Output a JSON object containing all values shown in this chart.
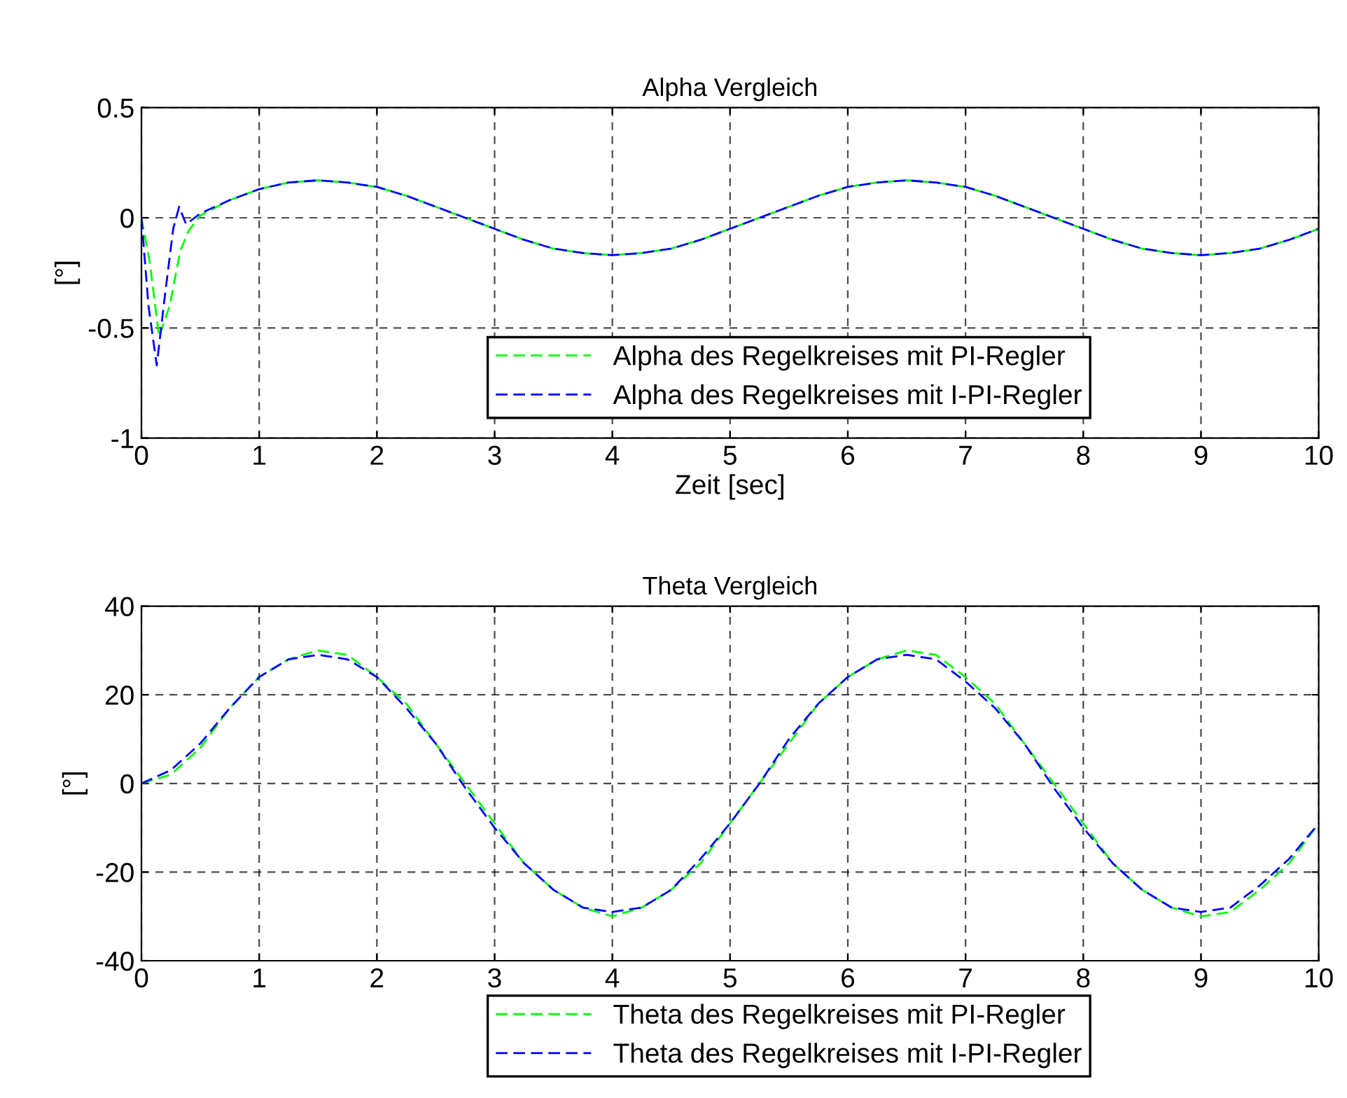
{
  "chart_data": [
    {
      "type": "line",
      "title": "Alpha Vergleich",
      "xlabel": "Zeit [sec]",
      "ylabel": "[°]",
      "xlim": [
        0,
        10
      ],
      "xticks": [
        0,
        1,
        2,
        3,
        4,
        5,
        6,
        7,
        8,
        9,
        10
      ],
      "ylim": [
        -1,
        0.5
      ],
      "yticks": [
        -1,
        -0.5,
        0,
        0.5
      ],
      "grid": true,
      "legend": "bottom",
      "line_style": "dashed",
      "series": [
        {
          "name": "Alpha des Regelkreises mit PI-Regler",
          "color": "#00ff00",
          "x": [
            0,
            0.07,
            0.15,
            0.24,
            0.33,
            0.4,
            0.5,
            0.75,
            1,
            1.25,
            1.5,
            1.75,
            2,
            2.25,
            2.5,
            2.75,
            3,
            3.25,
            3.5,
            3.75,
            4,
            4.25,
            4.5,
            4.75,
            5,
            5.25,
            5.5,
            5.75,
            6,
            6.25,
            6.5,
            6.75,
            7,
            7.25,
            7.5,
            7.75,
            8,
            8.25,
            8.5,
            8.75,
            9,
            9.25,
            9.5,
            9.75,
            10
          ],
          "values": [
            0,
            -0.2,
            -0.54,
            -0.4,
            -0.15,
            -0.06,
            0.01,
            0.08,
            0.13,
            0.16,
            0.17,
            0.16,
            0.14,
            0.1,
            0.05,
            0,
            -0.05,
            -0.1,
            -0.14,
            -0.16,
            -0.17,
            -0.16,
            -0.14,
            -0.1,
            -0.05,
            0,
            0.05,
            0.1,
            0.14,
            0.16,
            0.17,
            0.16,
            0.14,
            0.1,
            0.05,
            0,
            -0.05,
            -0.1,
            -0.14,
            -0.16,
            -0.17,
            -0.16,
            -0.14,
            -0.1,
            -0.05
          ]
        },
        {
          "name": "Alpha des Regelkreises mit I-PI-Regler",
          "color": "#0000ff",
          "x": [
            0,
            0.06,
            0.13,
            0.2,
            0.27,
            0.32,
            0.38,
            0.5,
            0.75,
            1,
            1.25,
            1.5,
            1.75,
            2,
            2.25,
            2.5,
            2.75,
            3,
            3.25,
            3.5,
            3.75,
            4,
            4.25,
            4.5,
            4.75,
            5,
            5.25,
            5.5,
            5.75,
            6,
            6.25,
            6.5,
            6.75,
            7,
            7.25,
            7.5,
            7.75,
            8,
            8.25,
            8.5,
            8.75,
            9,
            9.25,
            9.5,
            9.75,
            10
          ],
          "values": [
            0,
            -0.4,
            -0.67,
            -0.35,
            -0.05,
            0.05,
            -0.03,
            0.02,
            0.08,
            0.13,
            0.16,
            0.17,
            0.16,
            0.14,
            0.1,
            0.05,
            0,
            -0.05,
            -0.1,
            -0.14,
            -0.16,
            -0.17,
            -0.16,
            -0.14,
            -0.1,
            -0.05,
            0,
            0.05,
            0.1,
            0.14,
            0.16,
            0.17,
            0.16,
            0.14,
            0.1,
            0.05,
            0,
            -0.05,
            -0.1,
            -0.14,
            -0.16,
            -0.17,
            -0.16,
            -0.14,
            -0.1,
            -0.05
          ]
        }
      ]
    },
    {
      "type": "line",
      "title": "Theta Vergleich",
      "ylabel": "[°]",
      "xlim": [
        0,
        10
      ],
      "xticks": [
        0,
        1,
        2,
        3,
        4,
        5,
        6,
        7,
        8,
        9,
        10
      ],
      "ylim": [
        -40,
        40
      ],
      "yticks": [
        -40,
        -20,
        0,
        20,
        40
      ],
      "grid": true,
      "legend": "bottom",
      "line_style": "dashed",
      "series": [
        {
          "name": "Theta des Regelkreises mit PI-Regler",
          "color": "#00ff00",
          "x": [
            0,
            0.25,
            0.5,
            0.75,
            1,
            1.25,
            1.5,
            1.75,
            2,
            2.25,
            2.5,
            2.75,
            3,
            3.25,
            3.5,
            3.75,
            4,
            4.25,
            4.5,
            4.75,
            5,
            5.25,
            5.5,
            5.75,
            6,
            6.25,
            6.5,
            6.75,
            7,
            7.25,
            7.5,
            7.75,
            8,
            8.25,
            8.5,
            8.75,
            9,
            9.25,
            9.5,
            9.75,
            10
          ],
          "values": [
            0,
            2,
            8,
            17,
            24,
            28,
            30,
            29,
            24,
            18,
            9,
            0,
            -9,
            -18,
            -24,
            -28,
            -30,
            -28,
            -24,
            -18,
            -9,
            0,
            9,
            18,
            24,
            28,
            30,
            29,
            24,
            18,
            9,
            0,
            -9,
            -18,
            -24,
            -28,
            -30,
            -29,
            -24,
            -18,
            -9
          ]
        },
        {
          "name": "Theta des Regelkreises mit I-PI-Regler",
          "color": "#0000ff",
          "x": [
            0,
            0.25,
            0.5,
            0.75,
            1,
            1.25,
            1.5,
            1.75,
            2,
            2.25,
            2.5,
            2.75,
            3,
            3.25,
            3.5,
            3.75,
            4,
            4.25,
            4.5,
            4.75,
            5,
            5.25,
            5.5,
            5.75,
            6,
            6.25,
            6.5,
            6.75,
            7,
            7.25,
            7.5,
            7.75,
            8,
            8.25,
            8.5,
            8.75,
            9,
            9.25,
            9.5,
            9.75,
            10
          ],
          "values": [
            0,
            3,
            9,
            17,
            24,
            28,
            29,
            28,
            24,
            17,
            9,
            -1,
            -10,
            -18,
            -24,
            -28,
            -29,
            -28,
            -24,
            -17,
            -9,
            0,
            10,
            18,
            24,
            28,
            29,
            28,
            23,
            17,
            9,
            -1,
            -10,
            -18,
            -24,
            -28,
            -29,
            -28,
            -23,
            -17,
            -9
          ]
        }
      ]
    }
  ]
}
